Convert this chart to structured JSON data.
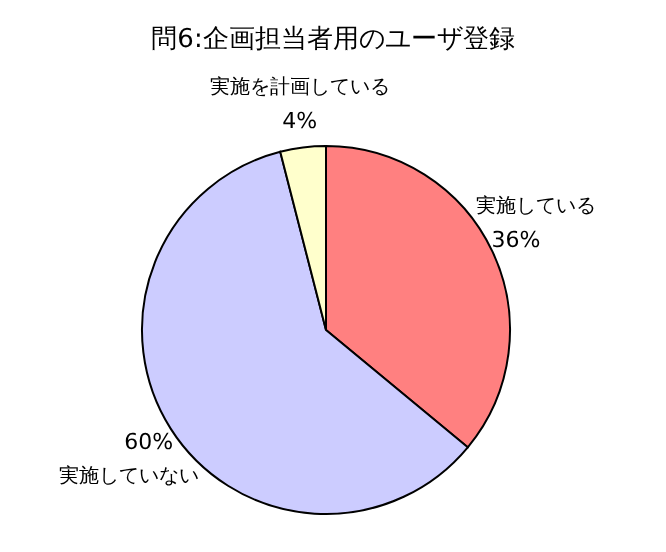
{
  "chart_data": {
    "type": "pie",
    "title": "問6:企画担当者用のユーザ登録",
    "categories": [
      "実施している",
      "実施していない",
      "実施を計画している"
    ],
    "values": [
      36,
      60,
      4
    ],
    "colors": [
      "#ff8080",
      "#ccccff",
      "#ffffcc"
    ],
    "value_labels": [
      "36%",
      "60%",
      "4%"
    ]
  }
}
